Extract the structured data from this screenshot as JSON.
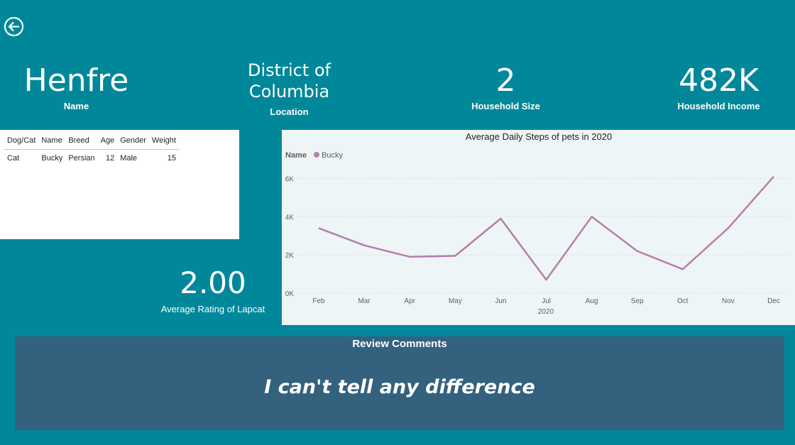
{
  "navigation": {
    "back_icon": "back-arrow-icon"
  },
  "kpis": {
    "name": {
      "value": "Henfre",
      "label": "Name"
    },
    "location": {
      "value_line1": "District of",
      "value_line2": "Columbia",
      "label": "Location"
    },
    "household_size": {
      "value": "2",
      "label": "Household Size"
    },
    "household_income": {
      "value": "482K",
      "label": "Household Income"
    }
  },
  "pet_table": {
    "columns": [
      "Dog/Cat",
      "Name",
      "Breed",
      "Age",
      "Gender",
      "Weight"
    ],
    "rows": [
      [
        "Cat",
        "Bucky",
        "Persian",
        "12",
        "Male",
        "15"
      ]
    ]
  },
  "rating": {
    "value": "2.00",
    "label": "Average Rating of Lapcat"
  },
  "chart_data": {
    "type": "line",
    "title": "Average Daily Steps of pets in 2020",
    "legend_title": "Name",
    "legend_position": "top-left",
    "xlabel": "2020",
    "ylabel": "",
    "categories": [
      "Feb",
      "Mar",
      "Apr",
      "May",
      "Jun",
      "Jul",
      "Aug",
      "Sep",
      "Oct",
      "Nov",
      "Dec"
    ],
    "series": [
      {
        "name": "Bucky",
        "color": "#b37fab",
        "values": [
          3400,
          2500,
          1900,
          1950,
          3900,
          700,
          4000,
          2200,
          1250,
          3400,
          6100
        ]
      }
    ],
    "y_ticks": [
      "0K",
      "2K",
      "4K",
      "6K"
    ],
    "ylim": [
      0,
      6500
    ],
    "grid": true
  },
  "review": {
    "title": "Review Comments",
    "comment": "I can't tell any difference"
  },
  "colors": {
    "background": "#00889a",
    "review_panel": "#33617e",
    "chart_bg": "#eef5f6",
    "series": "#b37fab"
  }
}
